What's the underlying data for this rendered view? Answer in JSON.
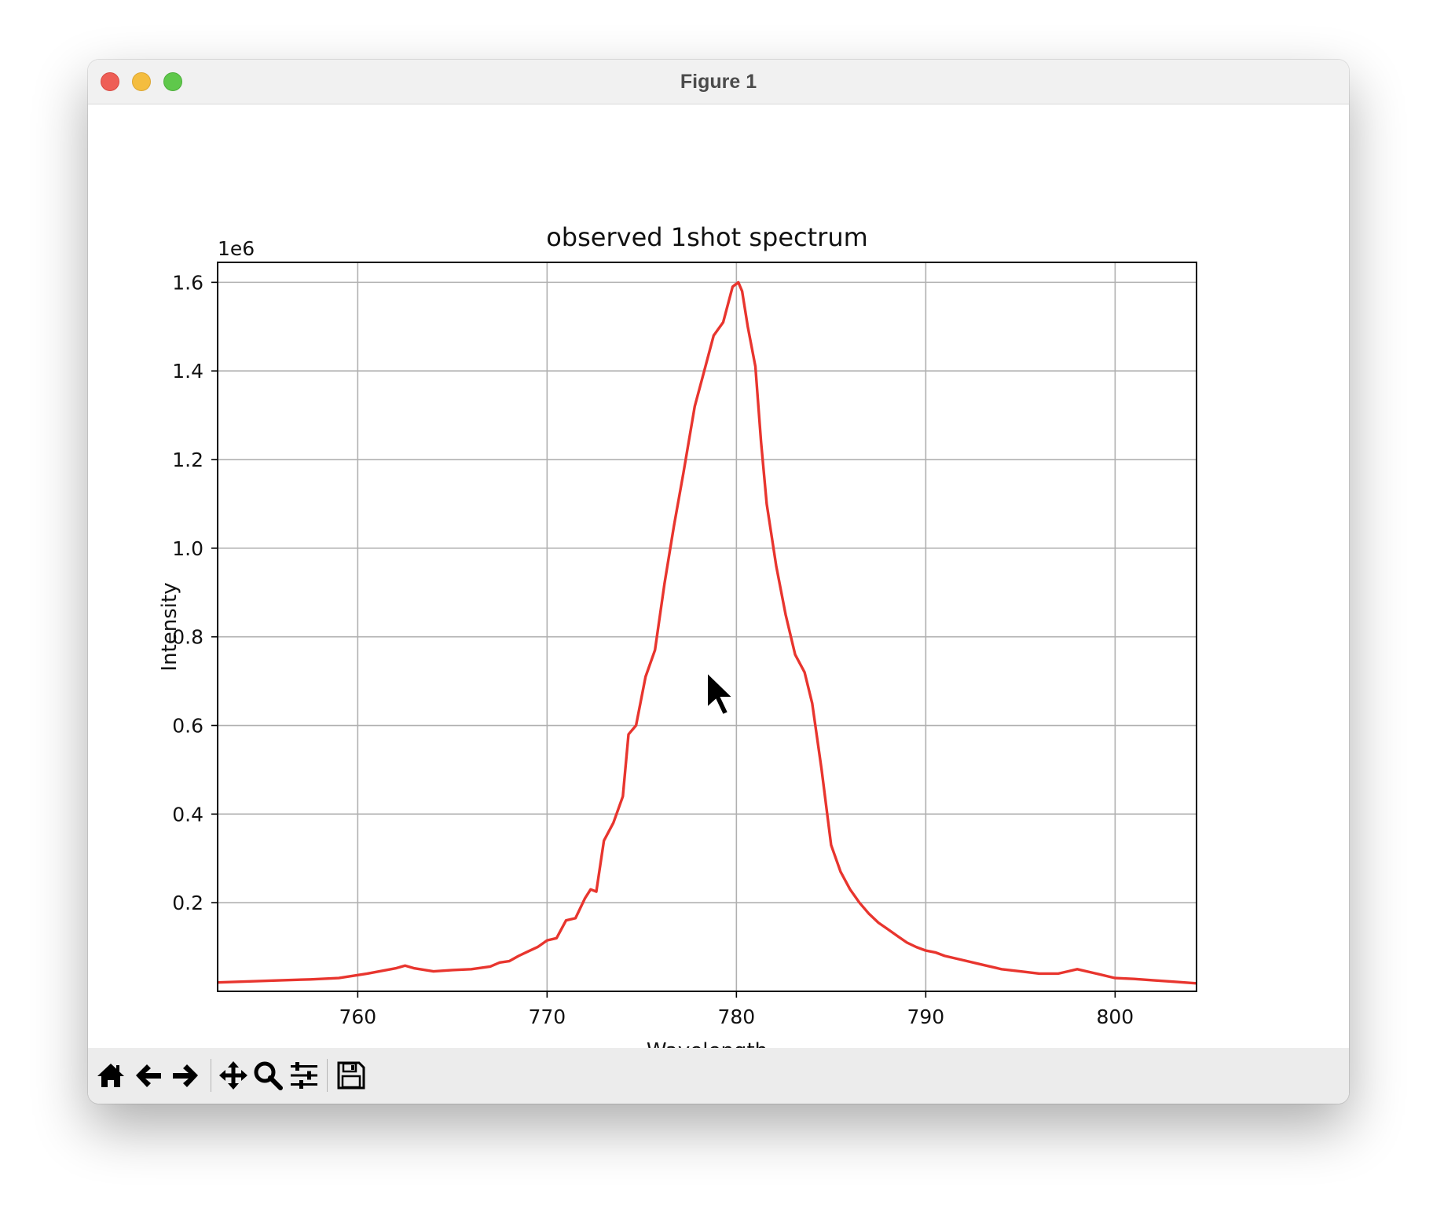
{
  "window": {
    "title": "Figure 1"
  },
  "toolbar": {
    "buttons": [
      {
        "name": "home-button",
        "icon": "home-icon"
      },
      {
        "name": "back-button",
        "icon": "arrow-left-icon"
      },
      {
        "name": "forward-button",
        "icon": "arrow-right-icon"
      },
      {
        "name": "pan-button",
        "icon": "move-icon"
      },
      {
        "name": "zoom-button",
        "icon": "magnifier-icon"
      },
      {
        "name": "configure-subplots-button",
        "icon": "sliders-icon"
      },
      {
        "name": "save-button",
        "icon": "floppy-disk-icon"
      }
    ]
  },
  "chart_data": {
    "type": "line",
    "title": "observed 1shot spectrum",
    "xlabel": "Wavelength",
    "ylabel": "Intensity",
    "y_offset_label": "1e6",
    "xlim": [
      752.6,
      804.3
    ],
    "ylim": [
      0.0,
      1.645
    ],
    "xticks": [
      760,
      770,
      780,
      790,
      800
    ],
    "xtick_labels": [
      "760",
      "770",
      "780",
      "790",
      "800"
    ],
    "yticks": [
      0.2,
      0.4,
      0.6,
      0.8,
      1.0,
      1.2,
      1.4,
      1.6
    ],
    "ytick_labels": [
      "0.2",
      "0.4",
      "0.6",
      "0.8",
      "1.0",
      "1.2",
      "1.4",
      "1.6"
    ],
    "grid": true,
    "line_color": "#e8352e",
    "series": [
      {
        "x": [
          752.6,
          754.0,
          756.0,
          757.5,
          759.0,
          760.5,
          761.5,
          762.0,
          762.5,
          763.0,
          764.0,
          765.0,
          766.0,
          767.0,
          767.5,
          768.0,
          768.5,
          769.0,
          769.5,
          770.0,
          770.5,
          771.0,
          771.5,
          772.0,
          772.3,
          772.6,
          773.0,
          773.5,
          774.0,
          774.3,
          774.7,
          775.2,
          775.7,
          776.2,
          776.7,
          777.2,
          777.8,
          778.3,
          778.8,
          779.3,
          779.8,
          780.1,
          780.3,
          780.6,
          781.0,
          781.3,
          781.6,
          782.1,
          782.6,
          783.1,
          783.6,
          784.0,
          784.5,
          785.0,
          785.5,
          786.0,
          786.5,
          787.0,
          787.5,
          788.0,
          788.5,
          789.0,
          789.5,
          790.0,
          790.5,
          791.0,
          792.0,
          793.0,
          794.0,
          795.0,
          796.0,
          797.0,
          797.5,
          798.0,
          799.0,
          800.0,
          801.0,
          802.0,
          803.0,
          804.3
        ],
        "y": [
          0.02,
          0.022,
          0.025,
          0.027,
          0.03,
          0.04,
          0.048,
          0.052,
          0.058,
          0.052,
          0.045,
          0.048,
          0.05,
          0.056,
          0.065,
          0.068,
          0.08,
          0.09,
          0.1,
          0.115,
          0.12,
          0.16,
          0.165,
          0.21,
          0.23,
          0.225,
          0.34,
          0.38,
          0.44,
          0.58,
          0.6,
          0.71,
          0.77,
          0.92,
          1.05,
          1.17,
          1.32,
          1.4,
          1.48,
          1.51,
          1.59,
          1.6,
          1.58,
          1.5,
          1.41,
          1.24,
          1.1,
          0.96,
          0.85,
          0.76,
          0.72,
          0.65,
          0.5,
          0.33,
          0.27,
          0.23,
          0.2,
          0.175,
          0.155,
          0.14,
          0.125,
          0.11,
          0.1,
          0.092,
          0.088,
          0.08,
          0.07,
          0.06,
          0.05,
          0.045,
          0.04,
          0.04,
          0.045,
          0.05,
          0.04,
          0.03,
          0.028,
          0.025,
          0.022,
          0.018
        ]
      }
    ]
  }
}
